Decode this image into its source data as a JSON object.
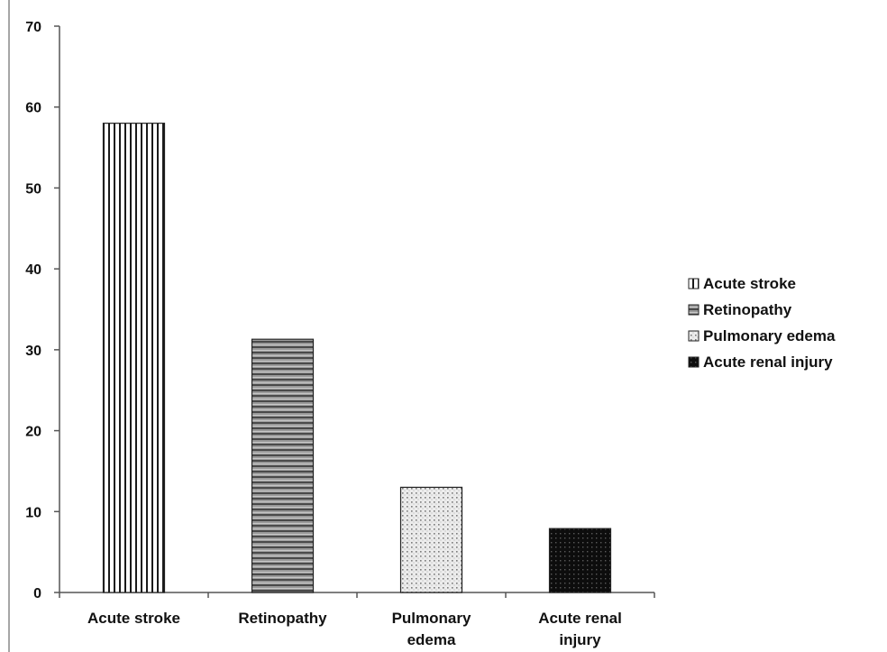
{
  "chart_data": {
    "type": "bar",
    "categories": [
      "Acute stroke",
      "Retinopathy",
      "Pulmonary edema",
      "Acute renal injury"
    ],
    "category_labels": [
      [
        "Acute stroke"
      ],
      [
        "Retinopathy"
      ],
      [
        "Pulmonary",
        "edema"
      ],
      [
        "Acute renal",
        "injury"
      ]
    ],
    "values": [
      58,
      31.3,
      13,
      7.9
    ],
    "patterns": [
      "vertical-stripes",
      "horizontal-stripes",
      "dotted-light",
      "dotted-dark"
    ],
    "colors": {
      "axis": "#555555",
      "bar_edge": "#222222",
      "stripe_dark": "#1a1a1a",
      "stripe_mid": "#666666",
      "stripe_light": "#bdbdbd",
      "dot_light_bg": "#ececec",
      "dot_dark_bg": "#0d0d0d"
    },
    "ylim": [
      0,
      70
    ],
    "yticks": [
      0,
      10,
      20,
      30,
      40,
      50,
      60,
      70
    ],
    "title": "",
    "xlabel": "",
    "ylabel": "",
    "grid": false,
    "legend": {
      "placement": "right",
      "entries": [
        "Acute stroke",
        "Retinopathy",
        "Pulmonary edema",
        "Acute renal injury"
      ]
    }
  }
}
